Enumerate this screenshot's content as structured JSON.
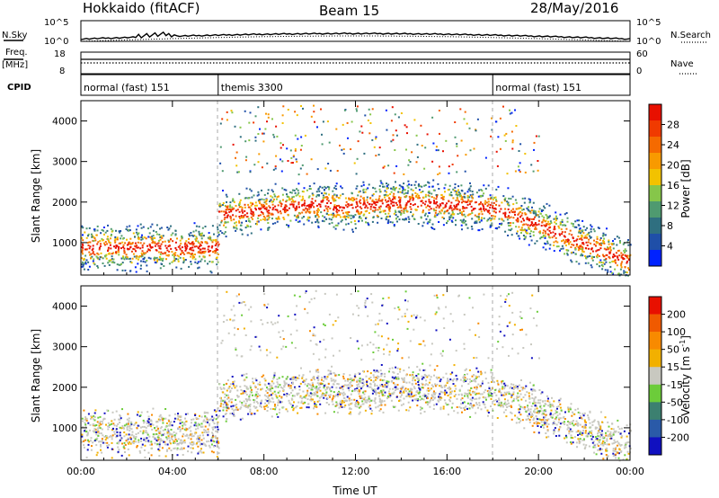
{
  "header": {
    "radar": "Hokkaido (fitACF)",
    "beam": "Beam 15",
    "date": "28/May/2016"
  },
  "status_panel": {
    "nsky_label": "N.Sky",
    "nsearch_label": "N.Search",
    "freq_label": "Freq.",
    "freq_unit": "[MHz]",
    "nave_label": "Nave",
    "cpid_label": "CPID",
    "nsky_ticks": [
      "10^5",
      "10^0"
    ],
    "nsearch_ticks": [
      "10^5",
      "10^0"
    ],
    "freq_ticks": [
      "18",
      "8"
    ],
    "nave_ticks": [
      "60",
      "0"
    ]
  },
  "cpid_segments": [
    {
      "label": "normal (fast) 151",
      "start_hour": 0,
      "end_hour": 6
    },
    {
      "label": "themis 3300",
      "start_hour": 6,
      "end_hour": 18
    },
    {
      "label": "normal (fast) 151",
      "start_hour": 18,
      "end_hour": 24
    }
  ],
  "chart_data": [
    {
      "type": "heatmap",
      "title": "Power",
      "ylabel": "Slant Range [km]",
      "xlabel": "",
      "ylim": [
        200,
        4500
      ],
      "xlim": [
        0,
        24
      ],
      "y_ticks": [
        "1000",
        "2000",
        "3000",
        "4000"
      ],
      "x_ticks": [
        "00:00",
        "04:00",
        "08:00",
        "12:00",
        "16:00",
        "20:00",
        "00:00"
      ],
      "colorbar": {
        "label": "Power [dB]",
        "ticks": [
          "4",
          "8",
          "12",
          "16",
          "20",
          "24",
          "28"
        ],
        "colors": [
          "#0022ff",
          "#1f4fa8",
          "#2f6f80",
          "#4f9a70",
          "#86c64a",
          "#f2c200",
          "#f89a00",
          "#f56a00",
          "#f03a00",
          "#e81000"
        ]
      },
      "scatter_bands": [
        {
          "start_hour": 0.0,
          "end_hour": 6.0,
          "range_km": [
            700,
            1000
          ],
          "level": "high"
        },
        {
          "start_hour": 6.0,
          "end_hour": 11.0,
          "range_km": [
            1500,
            2200
          ],
          "level": "high"
        },
        {
          "start_hour": 11.0,
          "end_hour": 18.0,
          "range_km": [
            1500,
            2400
          ],
          "level": "high"
        },
        {
          "start_hour": 18.0,
          "end_hour": 24.0,
          "range_km": [
            500,
            2000
          ],
          "level": "high"
        }
      ]
    },
    {
      "type": "heatmap",
      "title": "Velocity",
      "ylabel": "Slant Range [km]",
      "xlabel": "Time UT",
      "ylim": [
        200,
        4500
      ],
      "xlim": [
        0,
        24
      ],
      "y_ticks": [
        "1000",
        "2000",
        "3000",
        "4000"
      ],
      "x_ticks": [
        "00:00",
        "04:00",
        "08:00",
        "12:00",
        "16:00",
        "20:00",
        "00:00"
      ],
      "colorbar": {
        "label": "Velocity [m s^-1]",
        "ticks": [
          "200",
          "100",
          "50",
          "15",
          "-15",
          "-50",
          "-100",
          "-200"
        ],
        "colors": [
          "#1010c0",
          "#2a5aa8",
          "#3c8070",
          "#6ccc3a",
          "#c8c8c0",
          "#f2b000",
          "#f88a00",
          "#f05a00",
          "#e81000"
        ]
      }
    }
  ]
}
